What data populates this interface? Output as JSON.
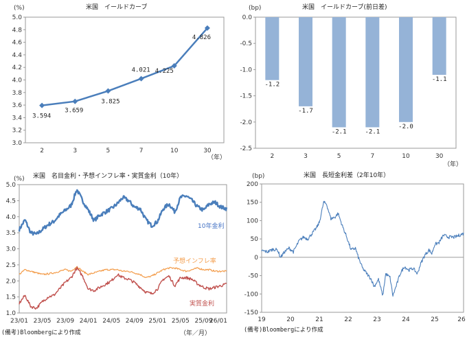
{
  "chart_data": [
    {
      "type": "line",
      "title": "米国　イールドカーブ",
      "ylabel": "(%)",
      "xlabel": "（年）",
      "categories": [
        "2",
        "3",
        "5",
        "7",
        "10",
        "30"
      ],
      "values": [
        3.594,
        3.659,
        3.825,
        4.021,
        4.225,
        4.826
      ],
      "data_labels": [
        "3.594",
        "3.659",
        "3.825",
        "4.021",
        "4.225",
        "4.826"
      ],
      "ylim": [
        3.0,
        5.0
      ],
      "yticks": [
        "5.0",
        "4.8",
        "4.6",
        "4.4",
        "4.2",
        "4.0",
        "3.8",
        "3.6",
        "3.4",
        "3.2",
        "3.0"
      ],
      "color": "#4a7ebb",
      "grid": false
    },
    {
      "type": "bar",
      "title": "米国　イールドカーブ(前日差)",
      "ylabel": "(bp)",
      "xlabel": "（年）",
      "categories": [
        "2",
        "3",
        "5",
        "7",
        "10",
        "30"
      ],
      "values": [
        -1.2,
        -1.7,
        -2.1,
        -2.1,
        -2.0,
        -1.1
      ],
      "data_labels": [
        "-1.2",
        "-1.7",
        "-2.1",
        "-2.1",
        "-2.0",
        "-1.1"
      ],
      "ylim": [
        -2.5,
        0.0
      ],
      "yticks": [
        "0.0",
        "-0.5",
        "-1.0",
        "-1.5",
        "-2.0",
        "-2.5"
      ],
      "color": "#95b3d7",
      "grid": false
    },
    {
      "type": "line",
      "title": "米国　名目金利・予想インフレ率・実質金利（10年）",
      "ylabel": "(%)",
      "xlabel": "（年／月）",
      "x_tick_labels": [
        "23/01",
        "23/05",
        "23/09",
        "24/01",
        "24/05",
        "24/09",
        "25/01",
        "25/05",
        "25/09",
        "26/01"
      ],
      "ylim": [
        1.0,
        5.0
      ],
      "yticks": [
        "5.0",
        "4.5",
        "4.0",
        "3.5",
        "3.0",
        "2.5",
        "2.0",
        "1.5",
        "1.0"
      ],
      "grid": false,
      "series": [
        {
          "name": "10年金利",
          "color": "#4a7ebb",
          "months": [
            0,
            1,
            2,
            3,
            4,
            5,
            6,
            7,
            8,
            9,
            10,
            11,
            12,
            13,
            14,
            15,
            16,
            17,
            18,
            19,
            20,
            21,
            22,
            23,
            24,
            25,
            26,
            27,
            28,
            29,
            30,
            31,
            32,
            33,
            34,
            35,
            36
          ],
          "values": [
            3.6,
            3.9,
            3.5,
            3.45,
            3.6,
            3.75,
            3.85,
            4.05,
            4.2,
            4.35,
            4.85,
            4.5,
            4.2,
            3.88,
            4.05,
            4.15,
            4.25,
            4.4,
            4.6,
            4.5,
            4.3,
            4.25,
            3.9,
            3.72,
            3.85,
            4.25,
            4.4,
            4.15,
            4.6,
            4.65,
            4.5,
            4.3,
            4.2,
            4.4,
            4.45,
            4.3,
            4.25
          ]
        },
        {
          "name": "予想インフレ率",
          "color": "#f39c4a",
          "months": [
            0,
            1,
            2,
            3,
            4,
            5,
            6,
            7,
            8,
            9,
            10,
            11,
            12,
            13,
            14,
            15,
            16,
            17,
            18,
            19,
            20,
            21,
            22,
            23,
            24,
            25,
            26,
            27,
            28,
            29,
            30,
            31,
            32,
            33,
            34,
            35,
            36
          ],
          "values": [
            2.2,
            2.35,
            2.3,
            2.25,
            2.2,
            2.22,
            2.25,
            2.3,
            2.35,
            2.3,
            2.45,
            2.3,
            2.2,
            2.25,
            2.3,
            2.35,
            2.35,
            2.35,
            2.3,
            2.3,
            2.25,
            2.2,
            2.1,
            2.15,
            2.25,
            2.35,
            2.4,
            2.4,
            2.35,
            2.3,
            2.35,
            2.4,
            2.35,
            2.35,
            2.3,
            2.3,
            2.3
          ]
        },
        {
          "name": "実質金利",
          "color": "#c0504d",
          "months": [
            0,
            1,
            2,
            3,
            4,
            5,
            6,
            7,
            8,
            9,
            10,
            11,
            12,
            13,
            14,
            15,
            16,
            17,
            18,
            19,
            20,
            21,
            22,
            23,
            24,
            25,
            26,
            27,
            28,
            29,
            30,
            31,
            32,
            33,
            34,
            35,
            36
          ],
          "values": [
            1.3,
            1.55,
            1.2,
            1.15,
            1.35,
            1.5,
            1.55,
            1.75,
            1.95,
            2.1,
            2.4,
            2.15,
            1.75,
            1.7,
            1.8,
            1.9,
            2.0,
            2.2,
            2.1,
            2.05,
            1.95,
            1.8,
            1.65,
            1.6,
            1.75,
            2.05,
            2.15,
            1.85,
            2.1,
            2.1,
            2.05,
            1.9,
            1.8,
            1.75,
            1.8,
            1.85,
            1.9
          ]
        }
      ]
    },
    {
      "type": "line",
      "title": "米国　長短金利差（2年10年）",
      "ylabel": "(bp)",
      "x_tick_labels": [
        "19",
        "20",
        "21",
        "22",
        "23",
        "24",
        "25",
        "26"
      ],
      "ylim": [
        -150,
        200
      ],
      "yticks": [
        "200",
        "150",
        "100",
        "50",
        "0",
        "-50",
        "-100",
        "-150"
      ],
      "grid": false,
      "series": [
        {
          "name": "2年10年",
          "color": "#4a7ebb",
          "years": [
            2019.0,
            2019.2,
            2019.4,
            2019.55,
            2019.65,
            2019.8,
            2019.95,
            2020.1,
            2020.2,
            2020.3,
            2020.45,
            2020.6,
            2020.75,
            2020.9,
            2021.0,
            2021.15,
            2021.25,
            2021.4,
            2021.55,
            2021.65,
            2021.8,
            2021.95,
            2022.1,
            2022.25,
            2022.35,
            2022.5,
            2022.65,
            2022.8,
            2022.9,
            2023.05,
            2023.2,
            2023.3,
            2023.45,
            2023.55,
            2023.7,
            2023.8,
            2023.95,
            2024.1,
            2024.25,
            2024.4,
            2024.5,
            2024.65,
            2024.8,
            2024.9,
            2025.0,
            2025.15,
            2025.3,
            2025.5,
            2025.7,
            2025.85,
            2026.0
          ],
          "values": [
            18,
            15,
            22,
            20,
            0,
            15,
            25,
            15,
            30,
            45,
            55,
            50,
            65,
            80,
            95,
            150,
            145,
            105,
            110,
            120,
            85,
            55,
            20,
            25,
            0,
            -30,
            -45,
            -60,
            -80,
            -60,
            -105,
            -45,
            -55,
            -105,
            -70,
            -45,
            -25,
            -35,
            -30,
            -45,
            -20,
            5,
            20,
            10,
            35,
            40,
            60,
            55,
            55,
            60,
            65
          ]
        }
      ]
    }
  ],
  "notes": {
    "source_left": "(備考)Bloombergにより作成",
    "source_right": "(備考)Bloombergにより作成"
  }
}
